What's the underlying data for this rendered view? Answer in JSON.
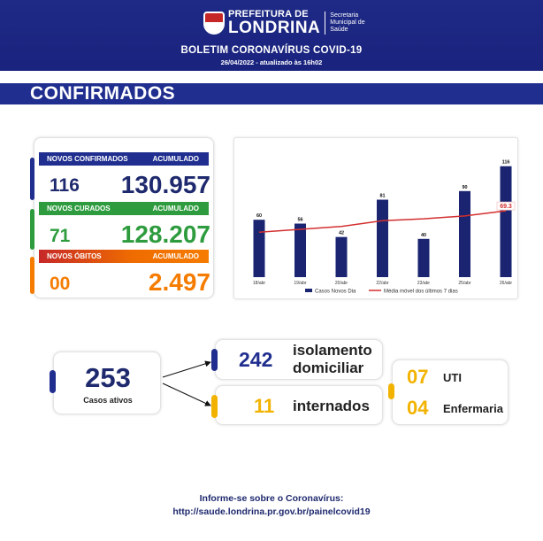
{
  "header": {
    "prefeitura": "PREFEITURA DE",
    "city": "LONDRINA",
    "secretaria_1": "Secretaria",
    "secretaria_2": "Municipal de",
    "secretaria_3": "Saúde",
    "title": "BOLETIM CORONAVÍRUS COVID-19",
    "date": "26/04/2022 - atualizado às 16h02"
  },
  "section_title": "CONFIRMADOS",
  "stats": {
    "confirmados": {
      "label": "NOVOS CONFIRMADOS",
      "acc_label": "ACUMULADO",
      "new": "116",
      "total": "130.957"
    },
    "curados": {
      "label": "NOVOS CURADOS",
      "acc_label": "ACUMULADO",
      "new": "71",
      "total": "128.207"
    },
    "obitos": {
      "label": "NOVOS ÓBITOS",
      "acc_label": "ACUMULADO",
      "new": "00",
      "total": "2.497"
    }
  },
  "colors": {
    "navy": "#1f2e8f",
    "green": "#2e9c3e",
    "orange": "#f57c00",
    "gold": "#f2b300",
    "bar": "#1a2470",
    "line": "#d32f2f"
  },
  "chart_data": {
    "type": "bar",
    "categories": [
      "18/abr",
      "19/abr",
      "20/abr",
      "22/abr",
      "23/abr",
      "25/abr",
      "26/abr"
    ],
    "series": [
      {
        "name": "Casos Novos Dia",
        "type": "bar",
        "values": [
          60,
          56,
          42,
          81,
          40,
          90,
          116
        ]
      },
      {
        "name": "Média móvel dos últimos 7 dias",
        "type": "line",
        "values": [
          47,
          50,
          53,
          59,
          61,
          64,
          69.3
        ]
      }
    ],
    "data_labels": [
      "60",
      "56",
      "42",
      "81",
      "40",
      "90",
      "116"
    ],
    "line_label": "69.3",
    "legend_position": "bottom",
    "ylim": [
      0,
      125
    ],
    "grid": false
  },
  "cases": {
    "active_num": "253",
    "active_label": "Casos ativos",
    "isolation_num": "242",
    "isolation_label_1": "isolamento",
    "isolation_label_2": "domiciliar",
    "hosp_num": "11",
    "hosp_label": "internados",
    "uti_num": "07",
    "uti_label": "UTI",
    "enf_num": "04",
    "enf_label": "Enfermaria"
  },
  "footer": {
    "line1": "Informe-se sobre o Coronavírus:",
    "line2": "http://saude.londrina.pr.gov.br/painelcovid19"
  }
}
